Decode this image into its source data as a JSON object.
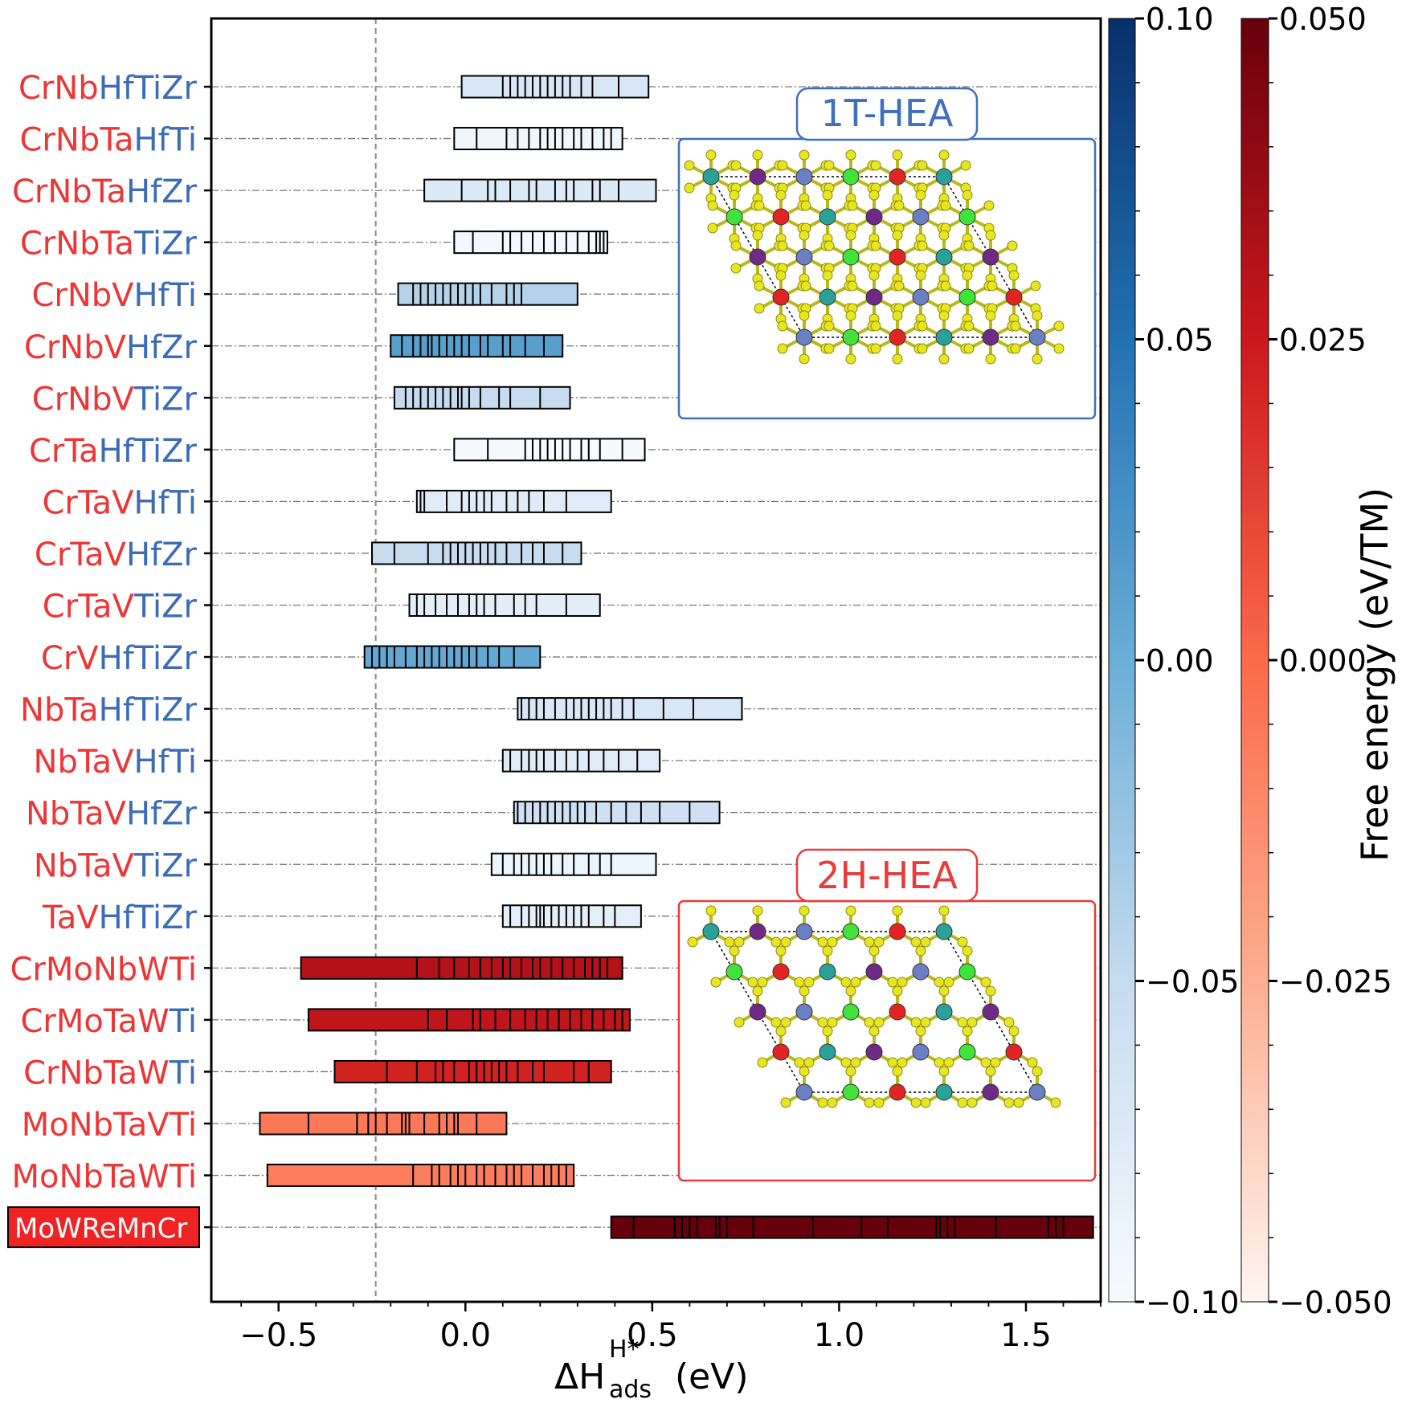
{
  "chart_data": {
    "type": "bar",
    "subtype": "horizontal-range-with-ticks",
    "xlabel": "ΔH",
    "xlabel_sup": "H*",
    "xlabel_sub": "ads",
    "xlabel_unit": "(eV)",
    "xlim": [
      -0.68,
      1.7
    ],
    "x_ticks": [
      -0.5,
      0.0,
      0.5,
      1.0,
      1.5
    ],
    "x_tick_labels": [
      "−0.5",
      "0.0",
      "0.5",
      "1.0",
      "1.5"
    ],
    "reference_line_x": -0.24,
    "rows": [
      {
        "name": "CrNbHfTiZr",
        "red": "CrNb",
        "blue": "HfTiZr",
        "group": "1T",
        "free_energy": -0.068,
        "range": [
          -0.01,
          0.49
        ],
        "ticks": [
          0.1,
          0.12,
          0.14,
          0.16,
          0.18,
          0.2,
          0.22,
          0.24,
          0.26,
          0.28,
          0.31,
          0.34,
          0.41
        ]
      },
      {
        "name": "CrNbTaHfTi",
        "red": "CrNbTa",
        "blue": "HfTi",
        "group": "1T",
        "free_energy": -0.092,
        "range": [
          -0.03,
          0.42
        ],
        "ticks": [
          0.03,
          0.11,
          0.14,
          0.17,
          0.2,
          0.22,
          0.24,
          0.26,
          0.29,
          0.31,
          0.34,
          0.37,
          0.39
        ]
      },
      {
        "name": "CrNbTaHfZr",
        "red": "CrNbTa",
        "blue": "HfZr",
        "group": "1T",
        "free_energy": -0.072,
        "range": [
          -0.11,
          0.51
        ],
        "ticks": [
          -0.01,
          0.06,
          0.08,
          0.12,
          0.17,
          0.19,
          0.24,
          0.27,
          0.29,
          0.34,
          0.36,
          0.41
        ]
      },
      {
        "name": "CrNbTaTiZr",
        "red": "CrNbTa",
        "blue": "TiZr",
        "group": "1T",
        "free_energy": -0.095,
        "range": [
          -0.03,
          0.38
        ],
        "ticks": [
          0.02,
          0.1,
          0.12,
          0.15,
          0.18,
          0.21,
          0.24,
          0.27,
          0.3,
          0.33,
          0.35,
          0.36,
          0.37
        ]
      },
      {
        "name": "CrNbVHfTi",
        "red": "CrNbV",
        "blue": "HfTi",
        "group": "1T",
        "free_energy": -0.04,
        "range": [
          -0.18,
          0.3
        ],
        "ticks": [
          -0.14,
          -0.12,
          -0.1,
          -0.08,
          -0.06,
          -0.04,
          -0.02,
          0.0,
          0.02,
          0.04,
          0.07,
          0.11,
          0.13,
          0.15
        ]
      },
      {
        "name": "CrNbVHfZr",
        "red": "CrNbV",
        "blue": "HfZr",
        "group": "1T",
        "free_energy": 0.012,
        "range": [
          -0.2,
          0.26
        ],
        "ticks": [
          -0.17,
          -0.14,
          -0.12,
          -0.1,
          -0.09,
          -0.07,
          -0.05,
          -0.03,
          -0.01,
          0.01,
          0.04,
          0.06,
          0.1,
          0.12,
          0.16,
          0.21
        ]
      },
      {
        "name": "CrNbVTiZr",
        "red": "CrNbV",
        "blue": "TiZr",
        "group": "1T",
        "free_energy": -0.05,
        "range": [
          -0.19,
          0.28
        ],
        "ticks": [
          -0.16,
          -0.14,
          -0.12,
          -0.1,
          -0.08,
          -0.06,
          -0.04,
          -0.02,
          -0.01,
          0.01,
          0.04,
          0.09,
          0.12,
          0.2
        ]
      },
      {
        "name": "CrTaHfTiZr",
        "red": "CrTa",
        "blue": "HfTiZr",
        "group": "1T",
        "free_energy": -0.098,
        "range": [
          -0.03,
          0.48
        ],
        "ticks": [
          0.06,
          0.16,
          0.18,
          0.2,
          0.22,
          0.24,
          0.26,
          0.28,
          0.31,
          0.33,
          0.36,
          0.42
        ]
      },
      {
        "name": "CrTaVHfTi",
        "red": "CrTaV",
        "blue": "HfTi",
        "group": "1T",
        "free_energy": -0.075,
        "range": [
          -0.13,
          0.39
        ],
        "ticks": [
          -0.12,
          -0.11,
          -0.05,
          -0.01,
          0.01,
          0.03,
          0.05,
          0.07,
          0.11,
          0.14,
          0.17,
          0.21,
          0.27
        ]
      },
      {
        "name": "CrTaVHfZr",
        "red": "CrTaV",
        "blue": "HfZr",
        "group": "1T",
        "free_energy": -0.052,
        "range": [
          -0.25,
          0.31
        ],
        "ticks": [
          -0.19,
          -0.1,
          -0.06,
          -0.04,
          -0.02,
          0.0,
          0.02,
          0.04,
          0.06,
          0.08,
          0.11,
          0.15,
          0.18,
          0.21,
          0.26
        ]
      },
      {
        "name": "CrTaVTiZr",
        "red": "CrTaV",
        "blue": "TiZr",
        "group": "1T",
        "free_energy": -0.08,
        "range": [
          -0.15,
          0.36
        ],
        "ticks": [
          -0.13,
          -0.11,
          -0.08,
          -0.05,
          -0.02,
          0.01,
          0.03,
          0.05,
          0.08,
          0.13,
          0.16,
          0.19,
          0.27
        ]
      },
      {
        "name": "CrVHfTiZr",
        "red": "CrV",
        "blue": "HfTiZr",
        "group": "1T",
        "free_energy": 0.005,
        "range": [
          -0.27,
          0.2
        ],
        "ticks": [
          -0.25,
          -0.23,
          -0.21,
          -0.19,
          -0.16,
          -0.13,
          -0.11,
          -0.09,
          -0.07,
          -0.05,
          -0.03,
          -0.01,
          0.01,
          0.03,
          0.06,
          0.09,
          0.13
        ]
      },
      {
        "name": "NbTaHfTiZr",
        "red": "NbTa",
        "blue": "HfTiZr",
        "group": "1T",
        "free_energy": -0.068,
        "range": [
          0.14,
          0.74
        ],
        "ticks": [
          0.15,
          0.17,
          0.19,
          0.21,
          0.24,
          0.27,
          0.29,
          0.31,
          0.33,
          0.35,
          0.37,
          0.39,
          0.42,
          0.45,
          0.53,
          0.61
        ]
      },
      {
        "name": "NbTaVHfTi",
        "red": "NbTaV",
        "blue": "HfTi",
        "group": "1T",
        "free_energy": -0.075,
        "range": [
          0.1,
          0.52
        ],
        "ticks": [
          0.12,
          0.15,
          0.17,
          0.19,
          0.21,
          0.24,
          0.27,
          0.3,
          0.33,
          0.37,
          0.41,
          0.46
        ]
      },
      {
        "name": "NbTaVHfZr",
        "red": "NbTaV",
        "blue": "HfZr",
        "group": "1T",
        "free_energy": -0.058,
        "range": [
          0.13,
          0.68
        ],
        "ticks": [
          0.14,
          0.16,
          0.18,
          0.2,
          0.22,
          0.24,
          0.26,
          0.28,
          0.3,
          0.32,
          0.35,
          0.39,
          0.43,
          0.47,
          0.52,
          0.6
        ]
      },
      {
        "name": "NbTaVTiZr",
        "red": "NbTaV",
        "blue": "TiZr",
        "group": "1T",
        "free_energy": -0.09,
        "range": [
          0.07,
          0.51
        ],
        "ticks": [
          0.1,
          0.13,
          0.15,
          0.17,
          0.19,
          0.21,
          0.23,
          0.26,
          0.29,
          0.33,
          0.36,
          0.39
        ]
      },
      {
        "name": "TaVHfTiZr",
        "red": "TaV",
        "blue": "HfTiZr",
        "group": "1T",
        "free_energy": -0.082,
        "range": [
          0.1,
          0.47
        ],
        "ticks": [
          0.12,
          0.15,
          0.17,
          0.19,
          0.2,
          0.21,
          0.23,
          0.25,
          0.27,
          0.29,
          0.31,
          0.33,
          0.37,
          0.4
        ]
      },
      {
        "name": "CrMoNbWTi",
        "red": "CrMoNbWTi",
        "blue": "",
        "group": "2H",
        "free_energy": 0.031,
        "range": [
          -0.44,
          0.42
        ],
        "ticks": [
          -0.13,
          -0.07,
          -0.03,
          0.01,
          0.04,
          0.07,
          0.1,
          0.12,
          0.15,
          0.18,
          0.2,
          0.23,
          0.26,
          0.29,
          0.32,
          0.34,
          0.36,
          0.38
        ]
      },
      {
        "name": "CrMoTaWTi",
        "red": "CrMoTaW",
        "blue": "Ti",
        "group": "2H",
        "free_energy": 0.028,
        "range": [
          -0.42,
          0.44
        ],
        "ticks": [
          -0.1,
          -0.05,
          0.02,
          0.04,
          0.08,
          0.12,
          0.16,
          0.19,
          0.22,
          0.25,
          0.28,
          0.31,
          0.34,
          0.37,
          0.4,
          0.42
        ]
      },
      {
        "name": "CrNbTaWTi",
        "red": "CrNbTaW",
        "blue": "Ti",
        "group": "2H",
        "free_energy": 0.022,
        "range": [
          -0.35,
          0.39
        ],
        "ticks": [
          -0.21,
          -0.13,
          -0.08,
          -0.06,
          -0.03,
          0.01,
          0.03,
          0.05,
          0.07,
          0.09,
          0.11,
          0.14,
          0.18,
          0.21,
          0.29,
          0.33
        ]
      },
      {
        "name": "MoNbTaVTi",
        "red": "MoNbTaVTi",
        "blue": "",
        "group": "2H",
        "free_energy": -0.005,
        "range": [
          -0.55,
          0.11
        ],
        "ticks": [
          -0.42,
          -0.29,
          -0.26,
          -0.24,
          -0.21,
          -0.17,
          -0.16,
          -0.15,
          -0.11,
          -0.07,
          -0.05,
          -0.03,
          -0.02,
          0.03
        ]
      },
      {
        "name": "MoNbTaWTi",
        "red": "MoNbTaWTi",
        "blue": "",
        "group": "2H",
        "free_energy": -0.007,
        "range": [
          -0.53,
          0.29
        ],
        "ticks": [
          -0.14,
          -0.09,
          -0.07,
          -0.04,
          -0.02,
          0.0,
          0.03,
          0.05,
          0.08,
          0.11,
          0.13,
          0.15,
          0.18,
          0.21,
          0.23,
          0.25,
          0.27
        ]
      },
      {
        "name": "MoWReMnCr",
        "red": "MoWReMnCr",
        "blue": "",
        "group": "2H",
        "highlight": true,
        "free_energy": 0.05,
        "range": [
          0.39,
          1.68
        ],
        "ticks": [
          0.45,
          0.56,
          0.58,
          0.6,
          0.62,
          0.67,
          0.68,
          0.7,
          0.77,
          0.93,
          1.06,
          1.13,
          1.26,
          1.27,
          1.29,
          1.31,
          1.42,
          1.56,
          1.58,
          1.6
        ]
      }
    ],
    "colorbars": [
      {
        "name": "blue",
        "cmap": "Blues",
        "range": [
          -0.1,
          0.1
        ],
        "ticks": [
          0.1,
          0.05,
          0.0,
          -0.05,
          -0.1
        ],
        "tick_labels": [
          "0.10",
          "0.05",
          "0.00",
          "−0.05",
          "−0.10"
        ]
      },
      {
        "name": "red",
        "cmap": "Reds",
        "range": [
          -0.05,
          0.05
        ],
        "ticks": [
          0.05,
          0.025,
          0.0,
          -0.025,
          -0.05
        ],
        "tick_labels": [
          "0.050",
          "0.025",
          "0.000",
          "−0.025",
          "−0.050"
        ],
        "label": "Free energy (eV/TM)"
      }
    ],
    "insets": [
      {
        "title": "1T-HEA",
        "color": "#3f6fbf"
      },
      {
        "title": "2H-HEA",
        "color": "#e83b3b"
      }
    ],
    "colors": {
      "red_text": "#ee3535",
      "blue_text": "#3c6cb8",
      "highlight_bg": "#ee2323",
      "atom_S": "#e8e621",
      "atoms": [
        "#2aa198",
        "#6a7fc4",
        "#e22424",
        "#6e2a86",
        "#3fe33a"
      ]
    }
  }
}
